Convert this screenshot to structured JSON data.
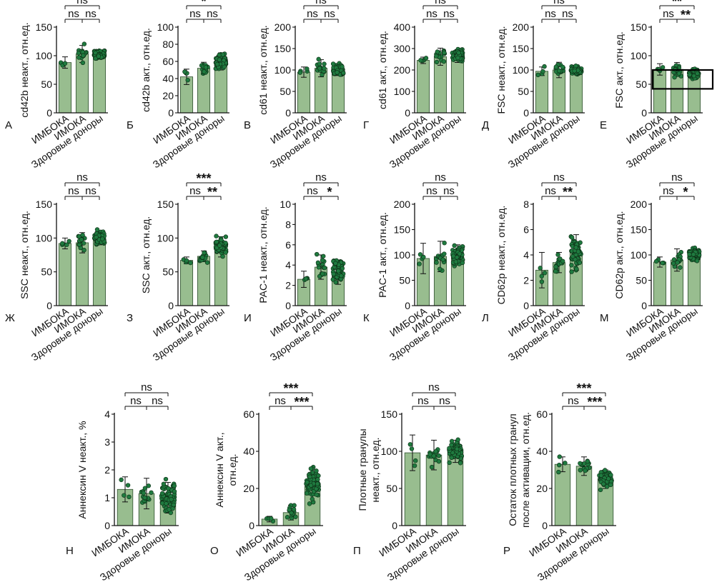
{
  "figure": {
    "colors": {
      "bar_fill": "#98bd8f",
      "bar_stroke": "#2f4f2f",
      "point_fill": "#1f7a3f",
      "point_stroke": "#0c2c14",
      "axis": "#111111"
    },
    "categories": [
      "ИМБОКА",
      "ИМОКА",
      "Здоровые доноры"
    ]
  },
  "chart_data": [
    {
      "panel": "А",
      "type": "bar",
      "ylabel": "cd42b неакт., отн.ед.",
      "ylim": [
        0,
        150
      ],
      "yticks": [
        0,
        50,
        100,
        150
      ],
      "means": [
        88,
        103,
        102
      ],
      "errors": [
        10,
        15,
        8
      ],
      "n_points": [
        4,
        15,
        70
      ],
      "sig": [
        {
          "from": 0,
          "to": 2,
          "label": "ns",
          "level": 2
        },
        {
          "from": 0,
          "to": 1,
          "label": "ns",
          "level": 1
        },
        {
          "from": 1,
          "to": 2,
          "label": "ns",
          "level": 1
        }
      ]
    },
    {
      "panel": "Б",
      "type": "bar",
      "ylabel": "cd42b акт., отн.ед.",
      "ylim": [
        0,
        100
      ],
      "yticks": [
        0,
        20,
        40,
        60,
        80,
        100
      ],
      "means": [
        42,
        52,
        60
      ],
      "errors": [
        9,
        7,
        10
      ],
      "n_points": [
        4,
        15,
        70
      ],
      "sig": [
        {
          "from": 0,
          "to": 2,
          "label": "*",
          "level": 2
        },
        {
          "from": 0,
          "to": 1,
          "label": "ns",
          "level": 1
        },
        {
          "from": 1,
          "to": 2,
          "label": "ns",
          "level": 1
        }
      ]
    },
    {
      "panel": "В",
      "type": "bar",
      "ylabel": "cd61 неакт., отн.ед.",
      "ylim": [
        0,
        200
      ],
      "yticks": [
        0,
        50,
        100,
        150,
        200
      ],
      "means": [
        95,
        104,
        101
      ],
      "errors": [
        12,
        20,
        14
      ],
      "n_points": [
        4,
        15,
        70
      ],
      "sig": [
        {
          "from": 0,
          "to": 2,
          "label": "ns",
          "level": 2
        },
        {
          "from": 0,
          "to": 1,
          "label": "ns",
          "level": 1
        },
        {
          "from": 1,
          "to": 2,
          "label": "ns",
          "level": 1
        }
      ]
    },
    {
      "panel": "Г",
      "type": "bar",
      "ylabel": "cd61 акт., отн.ед.",
      "ylim": [
        0,
        400
      ],
      "yticks": [
        0,
        100,
        200,
        300,
        400
      ],
      "means": [
        245,
        262,
        265
      ],
      "errors": [
        15,
        40,
        30
      ],
      "n_points": [
        4,
        15,
        70
      ],
      "sig": [
        {
          "from": 0,
          "to": 2,
          "label": "ns",
          "level": 2
        },
        {
          "from": 0,
          "to": 1,
          "label": "ns",
          "level": 1
        },
        {
          "from": 1,
          "to": 2,
          "label": "ns",
          "level": 1
        }
      ]
    },
    {
      "panel": "Д",
      "type": "bar",
      "ylabel": "FSC неакт., отн.ед.",
      "ylim": [
        0,
        200
      ],
      "yticks": [
        0,
        50,
        100,
        150,
        200
      ],
      "means": [
        97,
        100,
        100
      ],
      "errors": [
        10,
        18,
        10
      ],
      "n_points": [
        4,
        15,
        70
      ],
      "sig": [
        {
          "from": 0,
          "to": 2,
          "label": "ns",
          "level": 2
        },
        {
          "from": 0,
          "to": 1,
          "label": "ns",
          "level": 1
        },
        {
          "from": 1,
          "to": 2,
          "label": "ns",
          "level": 1
        }
      ]
    },
    {
      "panel": "Е",
      "type": "bar",
      "ylabel": "FSC акт., отн.ед.",
      "ylim": [
        0,
        150
      ],
      "yticks": [
        0,
        50,
        100,
        150
      ],
      "means": [
        76,
        76,
        68
      ],
      "errors": [
        10,
        12,
        8
      ],
      "n_points": [
        4,
        15,
        70
      ],
      "highlight_box": [
        42,
        75
      ],
      "sig": [
        {
          "from": 0,
          "to": 2,
          "label": "**",
          "level": 2
        },
        {
          "from": 0,
          "to": 1,
          "label": "ns",
          "level": 1
        },
        {
          "from": 1,
          "to": 2,
          "label": "**",
          "level": 1
        }
      ]
    },
    {
      "panel": "Ж",
      "type": "bar",
      "ylabel": "SSC неакт., отн.ед.",
      "ylim": [
        0,
        150
      ],
      "yticks": [
        0,
        50,
        100,
        150
      ],
      "means": [
        92,
        93,
        100
      ],
      "errors": [
        8,
        15,
        10
      ],
      "n_points": [
        4,
        15,
        70
      ],
      "sig": [
        {
          "from": 0,
          "to": 2,
          "label": "ns",
          "level": 2
        },
        {
          "from": 0,
          "to": 1,
          "label": "ns",
          "level": 1
        },
        {
          "from": 1,
          "to": 2,
          "label": "ns",
          "level": 1
        }
      ]
    },
    {
      "panel": "З",
      "type": "bar",
      "ylabel": "SSC акт., отн.ед.",
      "ylim": [
        0,
        150
      ],
      "yticks": [
        0,
        50,
        100,
        150
      ],
      "means": [
        67,
        73,
        87
      ],
      "errors": [
        5,
        8,
        15
      ],
      "n_points": [
        4,
        15,
        70
      ],
      "sig": [
        {
          "from": 0,
          "to": 2,
          "label": "***",
          "level": 2
        },
        {
          "from": 0,
          "to": 1,
          "label": "ns",
          "level": 1
        },
        {
          "from": 1,
          "to": 2,
          "label": "**",
          "level": 1
        }
      ]
    },
    {
      "panel": "И",
      "type": "bar",
      "ylabel": "PAC-1 неакт., отн.ед.",
      "ylim": [
        0,
        10
      ],
      "yticks": [
        0,
        2,
        4,
        6,
        8,
        10
      ],
      "means": [
        2.6,
        3.8,
        3.3
      ],
      "errors": [
        0.8,
        1.2,
        1.2
      ],
      "n_points": [
        4,
        15,
        70
      ],
      "sig": [
        {
          "from": 0,
          "to": 2,
          "label": "ns",
          "level": 2
        },
        {
          "from": 0,
          "to": 1,
          "label": "ns",
          "level": 1
        },
        {
          "from": 1,
          "to": 2,
          "label": "*",
          "level": 1
        }
      ]
    },
    {
      "panel": "К",
      "type": "bar",
      "ylabel": "PAC-1 акт., отн.ед.",
      "ylim": [
        0,
        200
      ],
      "yticks": [
        0,
        50,
        100,
        150,
        200
      ],
      "means": [
        93,
        97,
        100
      ],
      "errors": [
        30,
        30,
        20
      ],
      "n_points": [
        4,
        15,
        70
      ],
      "sig": [
        {
          "from": 0,
          "to": 2,
          "label": "ns",
          "level": 2
        },
        {
          "from": 0,
          "to": 1,
          "label": "ns",
          "level": 1
        },
        {
          "from": 1,
          "to": 2,
          "label": "ns",
          "level": 1
        }
      ]
    },
    {
      "panel": "Л",
      "type": "bar",
      "ylabel": "CD62p неакт., отн.ед.",
      "ylim": [
        0,
        8
      ],
      "yticks": [
        0,
        2,
        4,
        6,
        8
      ],
      "means": [
        2.8,
        3.4,
        4.2
      ],
      "errors": [
        1.4,
        0.8,
        1.4
      ],
      "n_points": [
        4,
        15,
        70
      ],
      "sig": [
        {
          "from": 0,
          "to": 2,
          "label": "ns",
          "level": 2
        },
        {
          "from": 0,
          "to": 1,
          "label": "ns",
          "level": 1
        },
        {
          "from": 1,
          "to": 2,
          "label": "**",
          "level": 1
        }
      ]
    },
    {
      "panel": "М",
      "type": "bar",
      "ylabel": "CD62p акт., отн.ед.",
      "ylim": [
        0,
        200
      ],
      "yticks": [
        0,
        50,
        100,
        150,
        200
      ],
      "means": [
        86,
        90,
        100
      ],
      "errors": [
        10,
        22,
        12
      ],
      "n_points": [
        4,
        15,
        70
      ],
      "sig": [
        {
          "from": 0,
          "to": 2,
          "label": "ns",
          "level": 2
        },
        {
          "from": 0,
          "to": 1,
          "label": "ns",
          "level": 1
        },
        {
          "from": 1,
          "to": 2,
          "label": "*",
          "level": 1
        }
      ]
    },
    {
      "panel": "Н",
      "type": "bar",
      "ylabel": "Аннексин V неакт., %",
      "ylim": [
        0,
        4
      ],
      "yticks": [
        0,
        1,
        2,
        3,
        4
      ],
      "means": [
        1.3,
        1.15,
        1.0
      ],
      "errors": [
        0.45,
        0.55,
        0.55
      ],
      "n_points": [
        4,
        15,
        70
      ],
      "sig": [
        {
          "from": 0,
          "to": 2,
          "label": "ns",
          "level": 2
        },
        {
          "from": 0,
          "to": 1,
          "label": "ns",
          "level": 1
        },
        {
          "from": 1,
          "to": 2,
          "label": "ns",
          "level": 1
        }
      ]
    },
    {
      "panel": "О",
      "type": "bar",
      "ylabel": "Аннексин V акт., отн.ед.",
      "ylim": [
        0,
        60
      ],
      "yticks": [
        0,
        20,
        40,
        60
      ],
      "means": [
        3.5,
        7,
        21
      ],
      "errors": [
        1.5,
        4,
        9
      ],
      "n_points": [
        4,
        15,
        70
      ],
      "sig": [
        {
          "from": 0,
          "to": 2,
          "label": "***",
          "level": 2
        },
        {
          "from": 0,
          "to": 1,
          "label": "ns",
          "level": 1
        },
        {
          "from": 1,
          "to": 2,
          "label": "***",
          "level": 1
        }
      ]
    },
    {
      "panel": "П",
      "type": "bar",
      "ylabel": "Плотные гранулы неакт., отн.ед.",
      "ylim": [
        0,
        150
      ],
      "yticks": [
        0,
        50,
        100,
        150
      ],
      "means": [
        98,
        95,
        100
      ],
      "errors": [
        24,
        20,
        15
      ],
      "n_points": [
        4,
        15,
        70
      ],
      "sig": [
        {
          "from": 0,
          "to": 2,
          "label": "ns",
          "level": 2
        },
        {
          "from": 0,
          "to": 1,
          "label": "ns",
          "level": 1
        },
        {
          "from": 1,
          "to": 2,
          "label": "ns",
          "level": 1
        }
      ]
    },
    {
      "panel": "Р",
      "type": "bar",
      "ylabel": "Остаток плотных гранул после активации, отн.ед.",
      "ylim": [
        0,
        60
      ],
      "yticks": [
        0,
        20,
        40,
        60
      ],
      "means": [
        33,
        32,
        25
      ],
      "errors": [
        4,
        5,
        5
      ],
      "n_points": [
        4,
        15,
        70
      ],
      "sig": [
        {
          "from": 0,
          "to": 2,
          "label": "***",
          "level": 2
        },
        {
          "from": 0,
          "to": 1,
          "label": "ns",
          "level": 1
        },
        {
          "from": 1,
          "to": 2,
          "label": "***",
          "level": 1
        }
      ]
    }
  ]
}
